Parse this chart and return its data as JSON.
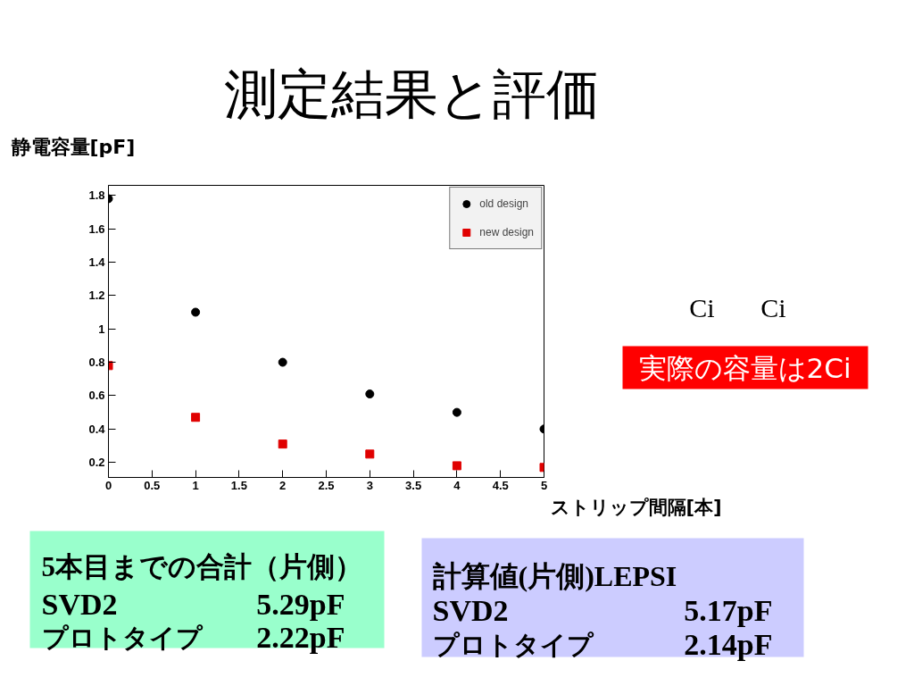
{
  "chart_data": {
    "type": "scatter",
    "title": "測定結果と評価",
    "xlabel": "ストリップ間隔[本]",
    "ylabel": "静電容量[pF]",
    "x": [
      0,
      1,
      2,
      3,
      4,
      5
    ],
    "series": [
      {
        "name": "old design",
        "color": "#000000",
        "marker": "circle",
        "values": [
          1.78,
          1.1,
          0.8,
          0.61,
          0.5,
          0.4
        ]
      },
      {
        "name": "new design",
        "color": "#e00000",
        "marker": "square",
        "values": [
          0.78,
          0.47,
          0.31,
          0.25,
          0.18,
          0.17
        ]
      }
    ],
    "xlim": [
      0,
      5
    ],
    "ylim": [
      0.11,
      1.86
    ],
    "xticks": [
      0,
      0.5,
      1,
      1.5,
      2,
      2.5,
      3,
      3.5,
      4,
      4.5,
      5
    ],
    "yticks": [
      0.2,
      0.4,
      0.6,
      0.8,
      1,
      1.2,
      1.4,
      1.6,
      1.8
    ],
    "grid": false,
    "legend": "top right",
    "annotations": [
      "Ci",
      "Ci",
      "実際の容量は2Ci",
      "5本目までの合計（片側）",
      "SVD2",
      "5.29pF",
      "プロトタイプ",
      "2.22pF",
      "計算値(片側)LEPSI",
      "SVD2",
      "5.17pF",
      "プロトタイプ",
      "2.14pF"
    ]
  }
}
